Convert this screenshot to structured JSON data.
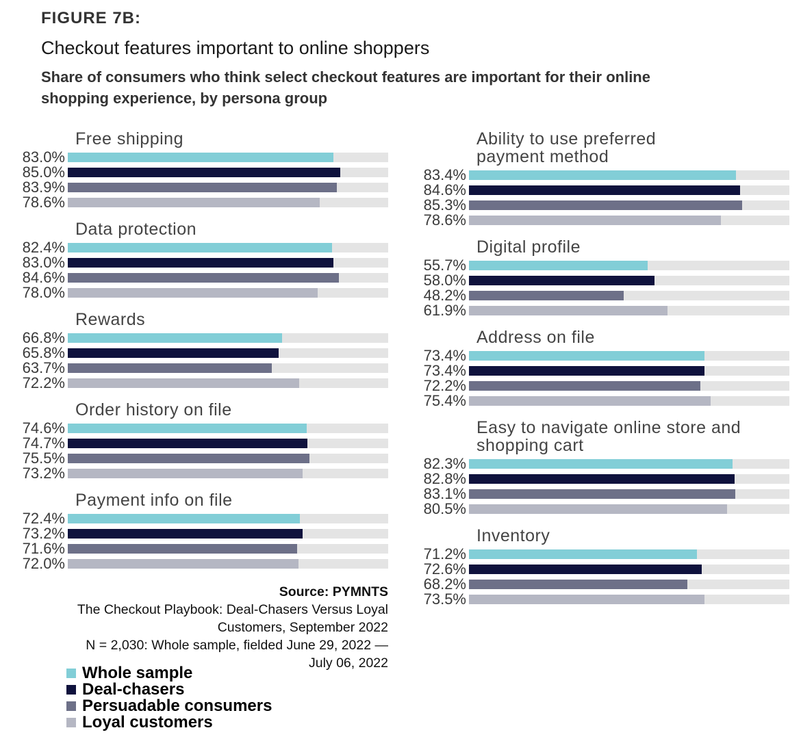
{
  "header": {
    "figure": "FIGURE 7B:",
    "title": "Checkout features important to online shoppers",
    "subtitle": "Share of consumers who think select checkout features are important for their online shopping experience, by persona group"
  },
  "chart_data": {
    "type": "bar",
    "orientation": "horizontal",
    "xlim": [
      0,
      100
    ],
    "series_names": [
      "Whole sample",
      "Deal-chasers",
      "Persuadable consumers",
      "Loyal customers"
    ],
    "colors": [
      "#82ced7",
      "#0f123d",
      "#6d7088",
      "#b5b7c3"
    ],
    "track_color": "#e4e4e4",
    "groups": [
      {
        "column": "left",
        "title": [
          "Free shipping"
        ],
        "values": [
          83.0,
          85.0,
          83.9,
          78.6
        ],
        "labels": [
          "83.0%",
          "85.0%",
          "83.9%",
          "78.6%"
        ]
      },
      {
        "column": "left",
        "title": [
          "Data protection"
        ],
        "values": [
          82.4,
          83.0,
          84.6,
          78.0
        ],
        "labels": [
          "82.4%",
          "83.0%",
          "84.6%",
          "78.0%"
        ]
      },
      {
        "column": "left",
        "title": [
          "Rewards"
        ],
        "values": [
          66.8,
          65.8,
          63.7,
          72.2
        ],
        "labels": [
          "66.8%",
          "65.8%",
          "63.7%",
          "72.2%"
        ]
      },
      {
        "column": "left",
        "title": [
          "Order history on file"
        ],
        "values": [
          74.6,
          74.7,
          75.5,
          73.2
        ],
        "labels": [
          "74.6%",
          "74.7%",
          "75.5%",
          "73.2%"
        ]
      },
      {
        "column": "left",
        "title": [
          "Payment info on file"
        ],
        "values": [
          72.4,
          73.2,
          71.6,
          72.0
        ],
        "labels": [
          "72.4%",
          "73.2%",
          "71.6%",
          "72.0%"
        ]
      },
      {
        "column": "right",
        "title": [
          "Ability to use preferred",
          "payment method"
        ],
        "values": [
          83.4,
          84.6,
          85.3,
          78.6
        ],
        "labels": [
          "83.4%",
          "84.6%",
          "85.3%",
          "78.6%"
        ]
      },
      {
        "column": "right",
        "title": [
          "Digital profile"
        ],
        "values": [
          55.7,
          58.0,
          48.2,
          61.9
        ],
        "labels": [
          "55.7%",
          "58.0%",
          "48.2%",
          "61.9%"
        ]
      },
      {
        "column": "right",
        "title": [
          "Address on file"
        ],
        "values": [
          73.4,
          73.4,
          72.2,
          75.4
        ],
        "labels": [
          "73.4%",
          "73.4%",
          "72.2%",
          "75.4%"
        ]
      },
      {
        "column": "right",
        "title": [
          "Easy to navigate online store and",
          "shopping cart"
        ],
        "values": [
          82.3,
          82.8,
          83.1,
          80.5
        ],
        "labels": [
          "82.3%",
          "82.8%",
          "83.1%",
          "80.5%"
        ]
      },
      {
        "column": "right",
        "title": [
          "Inventory"
        ],
        "values": [
          71.2,
          72.6,
          68.2,
          73.5
        ],
        "labels": [
          "71.2%",
          "72.6%",
          "68.2%",
          "73.5%"
        ]
      }
    ]
  },
  "source": {
    "label": "Source: PYMNTS",
    "line1": "The Checkout Playbook: Deal-Chasers Versus Loyal",
    "line2": "Customers, September 2022",
    "line3": "N = 2,030: Whole sample, fielded June 29, 2022 —",
    "line4": "July 06, 2022"
  },
  "legend": [
    "Whole sample",
    "Deal-chasers",
    "Persuadable consumers",
    "Loyal customers"
  ]
}
